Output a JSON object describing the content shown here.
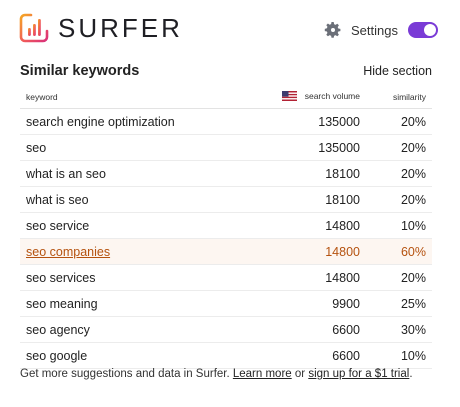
{
  "header": {
    "brand": "SURFER",
    "settings_label": "Settings",
    "toggle_on": true,
    "accent_color": "#7a3bd6"
  },
  "section": {
    "title": "Similar keywords",
    "hide_label": "Hide section"
  },
  "table": {
    "columns": {
      "keyword": "keyword",
      "search_volume": "search volume",
      "similarity": "similarity"
    },
    "rows": [
      {
        "keyword": "search engine optimization",
        "volume": "135000",
        "similarity": "20%"
      },
      {
        "keyword": "seo",
        "volume": "135000",
        "similarity": "20%"
      },
      {
        "keyword": "what is an seo",
        "volume": "18100",
        "similarity": "20%"
      },
      {
        "keyword": "what is seo",
        "volume": "18100",
        "similarity": "20%"
      },
      {
        "keyword": "seo service",
        "volume": "14800",
        "similarity": "10%"
      },
      {
        "keyword": "seo companies",
        "volume": "14800",
        "similarity": "60%",
        "highlighted": true
      },
      {
        "keyword": "seo services",
        "volume": "14800",
        "similarity": "20%"
      },
      {
        "keyword": "seo meaning",
        "volume": "9900",
        "similarity": "25%"
      },
      {
        "keyword": "seo agency",
        "volume": "6600",
        "similarity": "30%"
      },
      {
        "keyword": "seo google",
        "volume": "6600",
        "similarity": "10%"
      }
    ]
  },
  "footer": {
    "prefix": "Get more suggestions and data in Surfer. ",
    "learn_more": "Learn more",
    "middle": " or ",
    "signup": "sign up for a $1 trial",
    "suffix": "."
  }
}
